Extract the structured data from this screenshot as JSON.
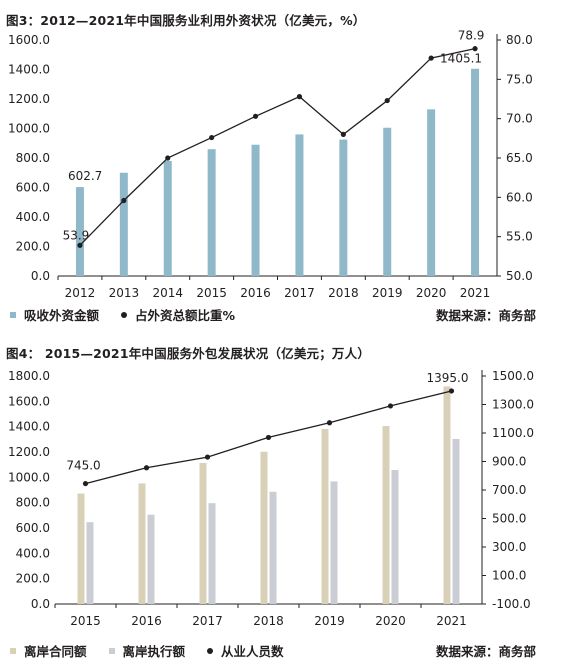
{
  "colors": {
    "bar_blue": "#8fb9c8",
    "bar_tan": "#d8d1b8",
    "bar_gray": "#cacdd3",
    "line": "#231f20"
  },
  "fig3": {
    "title": "图3：2012—2021年中国服务业利用外资状况（亿美元，%）",
    "legend": {
      "bar": "吸收外资金额",
      "line": "占外资总额比重%",
      "source": "数据来源：商务部"
    }
  },
  "fig4": {
    "title": "图4：  2015—2021年中国服务外包发展状况（亿美元；万人）",
    "legend": {
      "bar1": "离岸合同额",
      "bar2": "离岸执行额",
      "line": "从业人员数",
      "source": "数据来源：商务部"
    }
  },
  "chart_data": [
    {
      "type": "bar",
      "title": "图3：2012—2021年中国服务业利用外资状况（亿美元，%）",
      "categories": [
        "2012",
        "2013",
        "2014",
        "2015",
        "2016",
        "2017",
        "2018",
        "2019",
        "2020",
        "2021"
      ],
      "series": [
        {
          "name": "吸收外资金额",
          "type": "bar",
          "axis": "left",
          "values": [
            602.7,
            700,
            780,
            860,
            890,
            960,
            925,
            1005,
            1130,
            1405.1
          ]
        },
        {
          "name": "占外资总额比重%",
          "type": "line",
          "axis": "right",
          "values": [
            53.9,
            59.6,
            65.0,
            67.6,
            70.3,
            72.8,
            68.0,
            72.3,
            77.7,
            78.9
          ]
        }
      ],
      "data_labels": {
        "bar_first": "602.7",
        "bar_last": "1405.1",
        "line_first": "53.9",
        "line_last": "78.9"
      },
      "ylim_left": [
        0,
        1600
      ],
      "yticks_left": [
        "0.0",
        "200.0",
        "400.0",
        "600.0",
        "800.0",
        "1000.0",
        "1200.0",
        "1400.0",
        "1600.0"
      ],
      "ylim_right": [
        50,
        80
      ],
      "yticks_right": [
        "50.0",
        "55.0",
        "60.0",
        "65.0",
        "70.0",
        "75.0",
        "80.0"
      ],
      "legend": "bottom",
      "grid": false
    },
    {
      "type": "bar",
      "title": "图4：  2015—2021年中国服务外包发展状况（亿美元；万人）",
      "categories": [
        "2015",
        "2016",
        "2017",
        "2018",
        "2019",
        "2020",
        "2021"
      ],
      "series": [
        {
          "name": "离岸合同额",
          "type": "bar",
          "axis": "left",
          "values": [
            872,
            952,
            1113,
            1202,
            1382,
            1405,
            1717
          ]
        },
        {
          "name": "离岸执行额",
          "type": "bar",
          "axis": "left",
          "values": [
            646,
            705,
            796,
            886,
            968,
            1058,
            1303
          ]
        },
        {
          "name": "从业人员数",
          "type": "line",
          "axis": "right",
          "values": [
            745.0,
            856,
            931,
            1069,
            1172,
            1290,
            1395.0
          ]
        }
      ],
      "data_labels": {
        "line_first": "745.0",
        "line_last": "1395.0"
      },
      "ylim_left": [
        0,
        1800
      ],
      "yticks_left": [
        "0.0",
        "200.0",
        "400.0",
        "600.0",
        "800.0",
        "1000.0",
        "1200.0",
        "1400.0",
        "1600.0",
        "1800.0"
      ],
      "ylim_right": [
        -100,
        1500
      ],
      "yticks_right": [
        "-100.0",
        "100.0",
        "300.0",
        "500.0",
        "700.0",
        "900.0",
        "1100.0",
        "1300.0",
        "1500.0"
      ],
      "legend": "bottom",
      "grid": false
    }
  ]
}
